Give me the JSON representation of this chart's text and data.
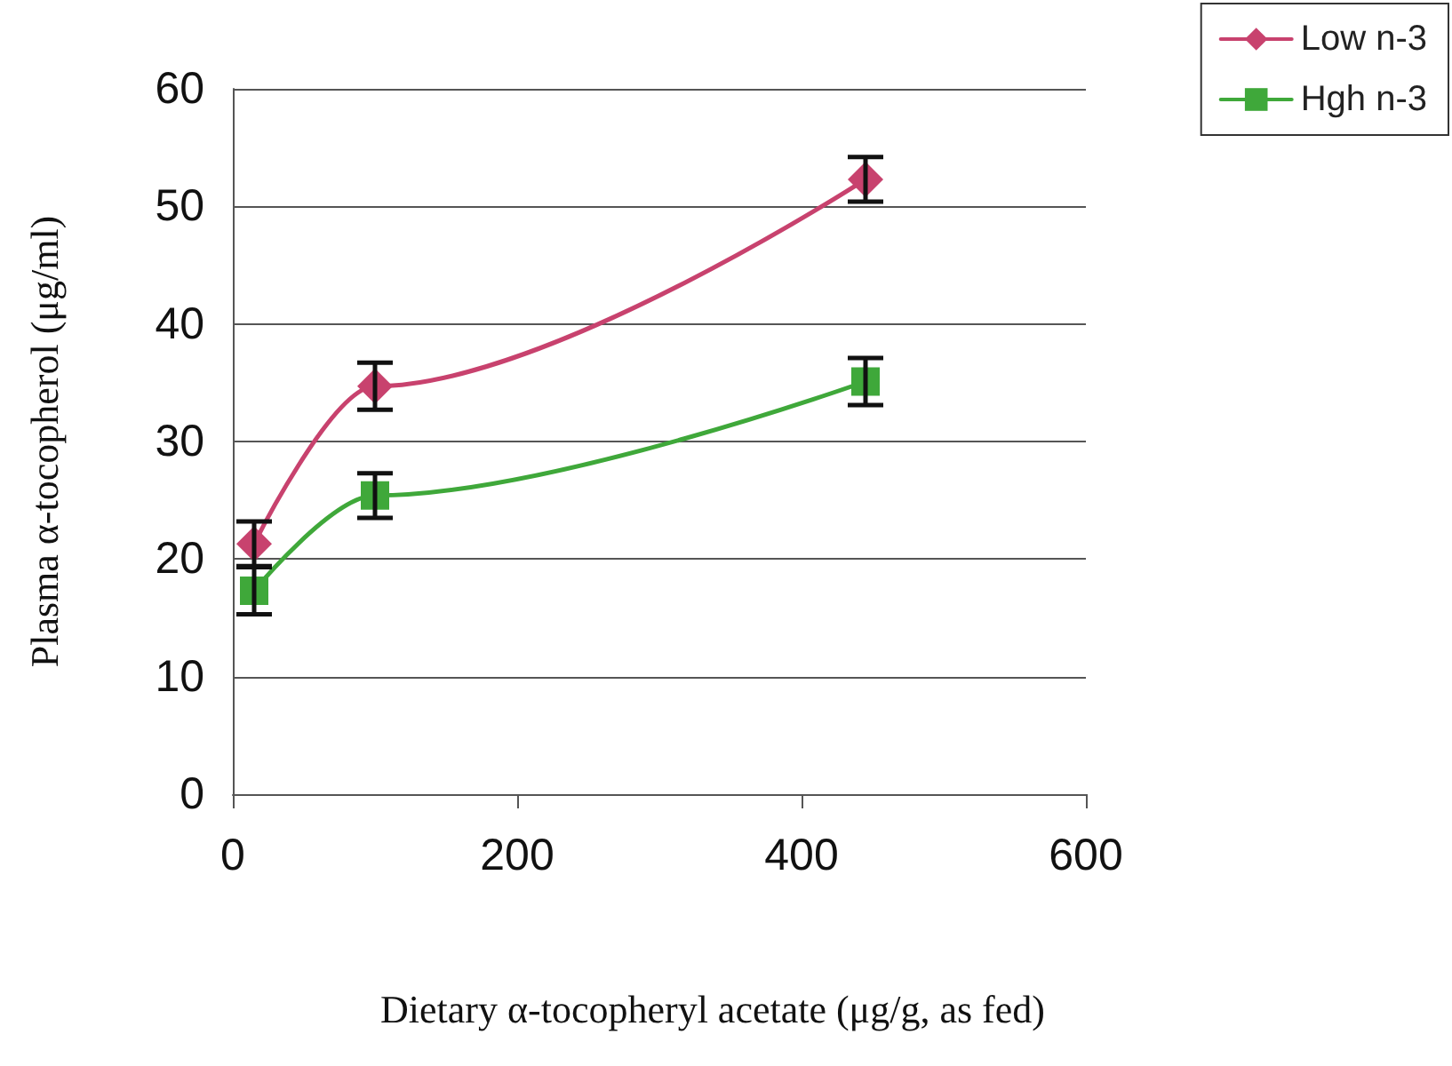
{
  "chart_data": {
    "type": "line",
    "xlabel": "Dietary α-tocopheryl acetate (μg/g, as fed)",
    "ylabel": "Plasma α-tocopherol (μg/ml)",
    "x": [
      15,
      100,
      445
    ],
    "series": [
      {
        "name": "Low n-3",
        "color": "#c8426e",
        "marker": "diamond",
        "values": [
          21.3,
          34.7,
          52.3
        ],
        "errors": [
          1.9,
          2.0,
          1.9
        ]
      },
      {
        "name": "Hgh n-3",
        "color": "#3fa83a",
        "marker": "square",
        "values": [
          17.3,
          25.4,
          35.1
        ],
        "errors": [
          2.0,
          1.9,
          2.0
        ]
      }
    ],
    "xlim": [
      0,
      600
    ],
    "xticks": [
      0,
      200,
      400,
      600
    ],
    "ylim": [
      0,
      60
    ],
    "yticks": [
      0,
      10,
      20,
      30,
      40,
      50,
      60
    ],
    "grid": "y",
    "legend": "top right",
    "line_style": "solid"
  }
}
